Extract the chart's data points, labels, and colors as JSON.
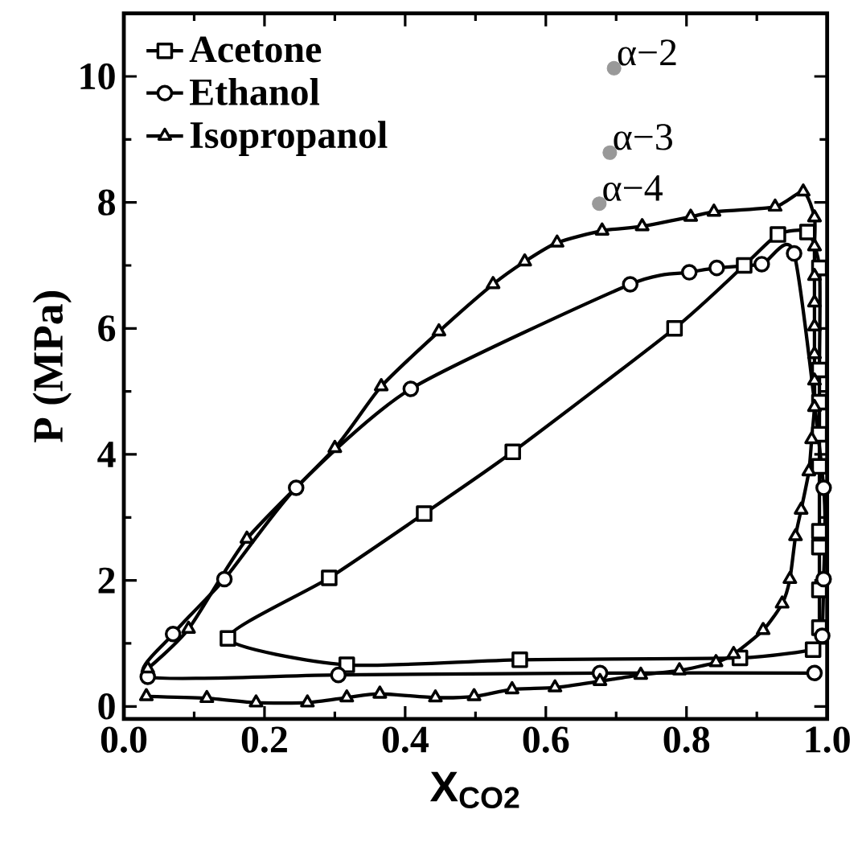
{
  "chart_data": {
    "type": "line",
    "xlabel": "X$_{CO2}$",
    "ylabel": "P (MPa)",
    "xlim": [
      0,
      1
    ],
    "ylim": [
      -0.2,
      11
    ],
    "xticks": [
      {
        "value": 0,
        "label": "0.0"
      },
      {
        "value": 0.2,
        "label": "0.2"
      },
      {
        "value": 0.4,
        "label": "0.4"
      },
      {
        "value": 0.6,
        "label": "0.6"
      },
      {
        "value": 0.8,
        "label": "0.8"
      },
      {
        "value": 1,
        "label": "1.0"
      }
    ],
    "yticks": [
      0,
      2,
      4,
      6,
      8,
      10
    ],
    "legend": "top left",
    "series": [
      {
        "name": "Acetone",
        "color": "#000000",
        "marker": "square",
        "x": [
          0.98,
          0.876,
          0.563,
          0.317,
          0.148,
          0.292,
          0.427,
          0.553,
          0.783,
          0.882,
          0.93,
          0.972,
          0.989,
          0.989,
          0.989,
          0.989,
          0.989,
          0.989,
          0.989,
          0.989,
          0.989
        ],
        "values": [
          0.9,
          0.77,
          0.74,
          0.66,
          1.08,
          2.04,
          3.06,
          4.04,
          6.0,
          7.0,
          7.49,
          7.53,
          6.96,
          5.34,
          4.83,
          4.32,
          3.81,
          2.78,
          2.53,
          1.85,
          1.25
        ]
      },
      {
        "name": "Ethanol",
        "color": "#000000",
        "marker": "circle",
        "x": [
          0.982,
          0.677,
          0.305,
          0.034,
          0.07,
          0.143,
          0.245,
          0.408,
          0.72,
          0.804,
          0.843,
          0.907,
          0.953,
          0.995,
          0.995,
          0.993
        ],
        "values": [
          0.53,
          0.53,
          0.5,
          0.47,
          1.15,
          2.02,
          3.47,
          5.04,
          6.7,
          6.89,
          6.96,
          7.02,
          7.19,
          3.47,
          2.02,
          1.12
        ]
      },
      {
        "name": "Isopropanol",
        "color": "#000000",
        "marker": "triangle",
        "x": [
          0.034,
          0.092,
          0.175,
          0.3,
          0.366,
          0.448,
          0.525,
          0.57,
          0.616,
          0.68,
          0.737,
          0.806,
          0.839,
          0.926,
          0.966,
          0.982,
          0.982,
          0.982,
          0.982,
          0.982,
          0.982,
          0.982,
          0.982,
          0.978,
          0.974,
          0.963,
          0.955,
          0.947,
          0.936,
          0.909,
          0.867,
          0.842,
          0.79,
          0.735,
          0.677,
          0.613,
          0.552,
          0.498,
          0.443,
          0.364,
          0.317,
          0.261,
          0.188,
          0.118,
          0.032
        ],
        "values": [
          0.6,
          1.23,
          2.66,
          4.1,
          5.08,
          5.95,
          6.7,
          7.06,
          7.36,
          7.55,
          7.62,
          7.77,
          7.85,
          7.93,
          8.17,
          7.76,
          7.3,
          6.83,
          6.41,
          6.03,
          5.59,
          5.17,
          4.75,
          4.24,
          3.73,
          3.12,
          2.7,
          2.02,
          1.63,
          1.21,
          0.83,
          0.7,
          0.57,
          0.5,
          0.4,
          0.3,
          0.27,
          0.16,
          0.14,
          0.2,
          0.14,
          0.06,
          0.06,
          0.13,
          0.16
        ]
      },
      {
        "type": "scatter",
        "color": "#999999",
        "marker": "circle",
        "x": [
          0.697,
          0.691,
          0.676
        ],
        "values": [
          10.13,
          8.79,
          7.98
        ]
      }
    ],
    "annotations": [
      {
        "text": "α−2",
        "x": 0.697,
        "y": 10.13
      },
      {
        "text": "α−3",
        "x": 0.691,
        "y": 8.79
      },
      {
        "text": "α−4",
        "x": 0.676,
        "y": 7.98
      }
    ]
  }
}
